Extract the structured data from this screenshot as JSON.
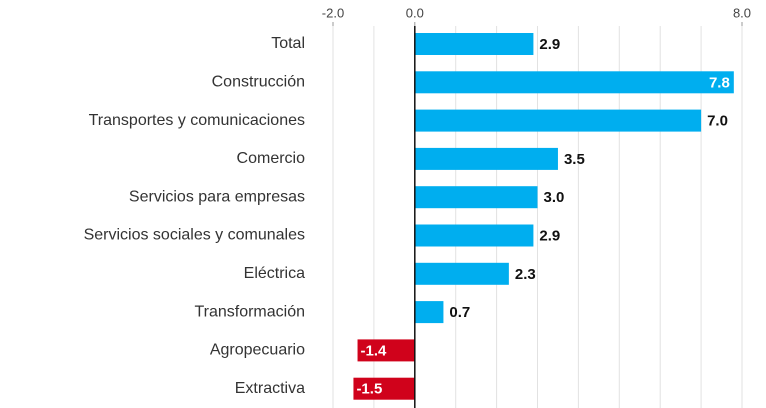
{
  "chart_data": {
    "type": "barh",
    "categories": [
      "Total",
      "Construcción",
      "Transportes y comunicaciones",
      "Comercio",
      "Servicios para empresas",
      "Servicios sociales y comunales",
      "Eléctrica",
      "Transformación",
      "Agropecuario",
      "Extractiva"
    ],
    "values": [
      2.9,
      7.8,
      7.0,
      3.5,
      3.0,
      2.9,
      2.3,
      0.7,
      -1.4,
      -1.5
    ],
    "value_labels": [
      "2.9",
      "7.8",
      "7.0",
      "3.5",
      "3.0",
      "2.9",
      "2.3",
      "0.7",
      "-1.4",
      "-1.5"
    ],
    "positive_color": "#00aeef",
    "negative_color": "#d0021b",
    "xlim": [
      -2,
      8
    ],
    "xticks": [
      {
        "value": -2,
        "label": "-2.0"
      },
      {
        "value": 0,
        "label": "0.0"
      },
      {
        "value": 8,
        "label": "8.0"
      }
    ],
    "grid_lines": [
      -2,
      -1,
      1,
      2,
      3,
      4,
      5,
      6,
      7,
      8
    ],
    "grid": true
  }
}
